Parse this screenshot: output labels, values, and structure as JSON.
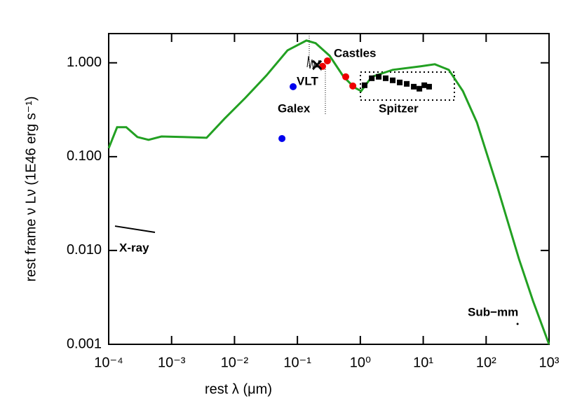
{
  "chart_data": {
    "type": "scatter",
    "xlabel": "rest λ (μm)",
    "ylabel": "rest frame ν Lν (1E46 erg s⁻¹)",
    "xscale": "log",
    "yscale": "log",
    "xlim": [
      0.0001,
      1000
    ],
    "ylim": [
      0.001,
      2.05
    ],
    "xticks": [
      {
        "value": 0.0001,
        "label": "10⁻⁴"
      },
      {
        "value": 0.001,
        "label": "10⁻³"
      },
      {
        "value": 0.01,
        "label": "10⁻²"
      },
      {
        "value": 0.1,
        "label": "10⁻¹"
      },
      {
        "value": 1,
        "label": "10⁰"
      },
      {
        "value": 10,
        "label": "10¹"
      },
      {
        "value": 100,
        "label": "10²"
      },
      {
        "value": 1000,
        "label": "10³"
      }
    ],
    "yticks": [
      0.001,
      {
        "value": 0.01,
        "label": "0.010"
      },
      {
        "value": 0.1,
        "label": "0.100"
      },
      {
        "value": 1,
        "label": "1.000"
      }
    ],
    "annotations": [
      "Castles",
      "VLT",
      "Galex",
      "Spitzer",
      "X-ray",
      "Sub−mm"
    ],
    "series": [
      {
        "marker": "line",
        "color": "#22a022",
        "x": [
          0.0001,
          0.000136,
          0.00019,
          0.000286,
          0.00043,
          0.00069,
          0.0015,
          0.0036,
          0.0069,
          0.0149,
          0.0322,
          0.0697,
          0.139,
          0.195,
          0.325,
          0.543,
          0.8,
          1.03,
          1.52,
          3.27,
          9.1,
          15.3,
          25.5,
          42.7,
          71.3,
          154,
          333,
          556,
          1000
        ],
        "values": [
          0.123,
          0.206,
          0.206,
          0.162,
          0.151,
          0.164,
          0.162,
          0.159,
          0.253,
          0.424,
          0.734,
          1.36,
          1.73,
          1.62,
          1.19,
          0.71,
          0.548,
          0.5,
          0.71,
          0.842,
          0.918,
          0.966,
          0.842,
          0.5,
          0.232,
          0.0454,
          0.0081,
          0.0029,
          0.001
        ]
      },
      {
        "marker": "circle",
        "color": "#0000ee",
        "x": [
          0.0855,
          0.0568
        ],
        "values": [
          0.557,
          0.156
        ]
      },
      {
        "marker": "circle",
        "color": "#ee0000",
        "x": [
          0.251,
          0.3,
          0.586,
          0.76
        ],
        "values": [
          0.918,
          1.05,
          0.71,
          0.567
        ]
      },
      {
        "marker": "cross",
        "color": "#000000",
        "x": [
          0.205
        ],
        "values": [
          0.95
        ]
      },
      {
        "marker": "square",
        "color": "#000000",
        "x": [
          1.17,
          1.52,
          1.96,
          2.53,
          3.27,
          4.23,
          5.47,
          7.07,
          8.69,
          10.4,
          12.4
        ],
        "values": [
          0.577,
          0.685,
          0.71,
          0.685,
          0.651,
          0.618,
          0.597,
          0.557,
          0.53,
          0.577,
          0.557
        ]
      },
      {
        "marker": "line",
        "color": "#000000",
        "x": [
          0.000126,
          0.000544
        ],
        "values": [
          0.0182,
          0.0156
        ]
      },
      {
        "marker": "dot",
        "color": "#000000",
        "x": [
          316
        ],
        "values": [
          0.00165
        ]
      }
    ]
  }
}
